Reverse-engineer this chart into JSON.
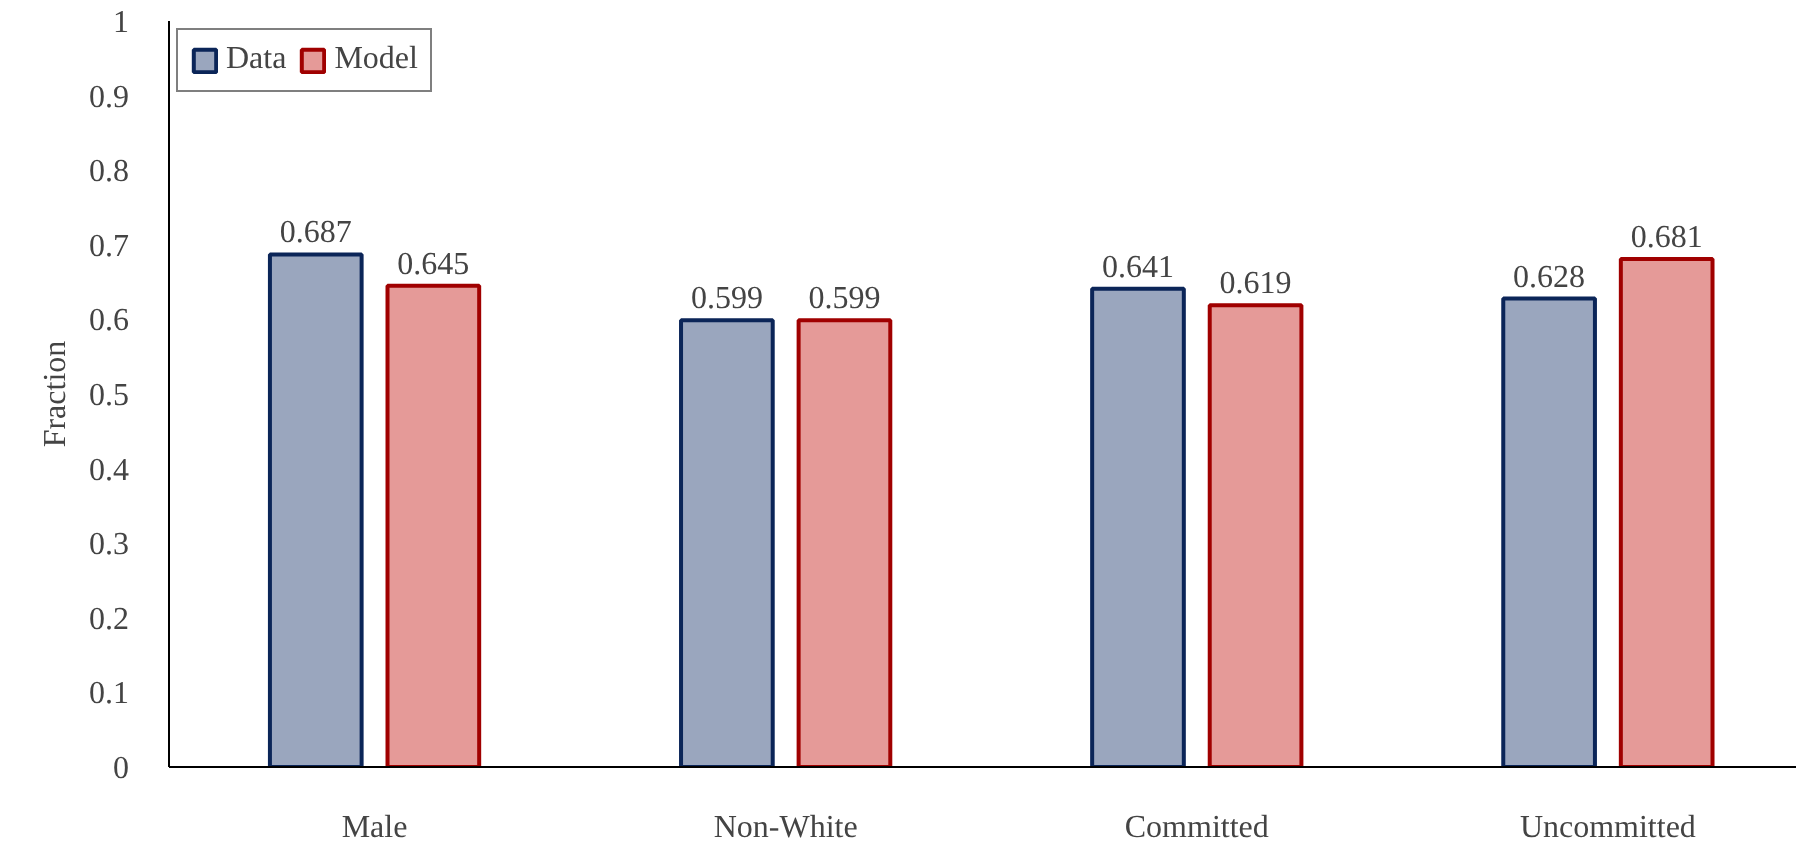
{
  "chart_data": {
    "type": "bar",
    "ylabel": "Fraction",
    "categories": [
      "Male",
      "Non-White",
      "Committed",
      "Uncommitted"
    ],
    "series": [
      {
        "name": "Data",
        "color": "#9aa6be",
        "values": [
          0.687,
          0.599,
          0.641,
          0.628
        ]
      },
      {
        "name": "Model",
        "color": "#e59a98",
        "values": [
          0.645,
          0.599,
          0.619,
          0.681
        ]
      }
    ],
    "ylim": [
      0,
      1
    ],
    "yticks": [
      0,
      0.1,
      0.2,
      0.3,
      0.4,
      0.5,
      0.6,
      0.7,
      0.8,
      0.9,
      1
    ],
    "data_labels": true,
    "legend": "top left",
    "grid": false
  }
}
